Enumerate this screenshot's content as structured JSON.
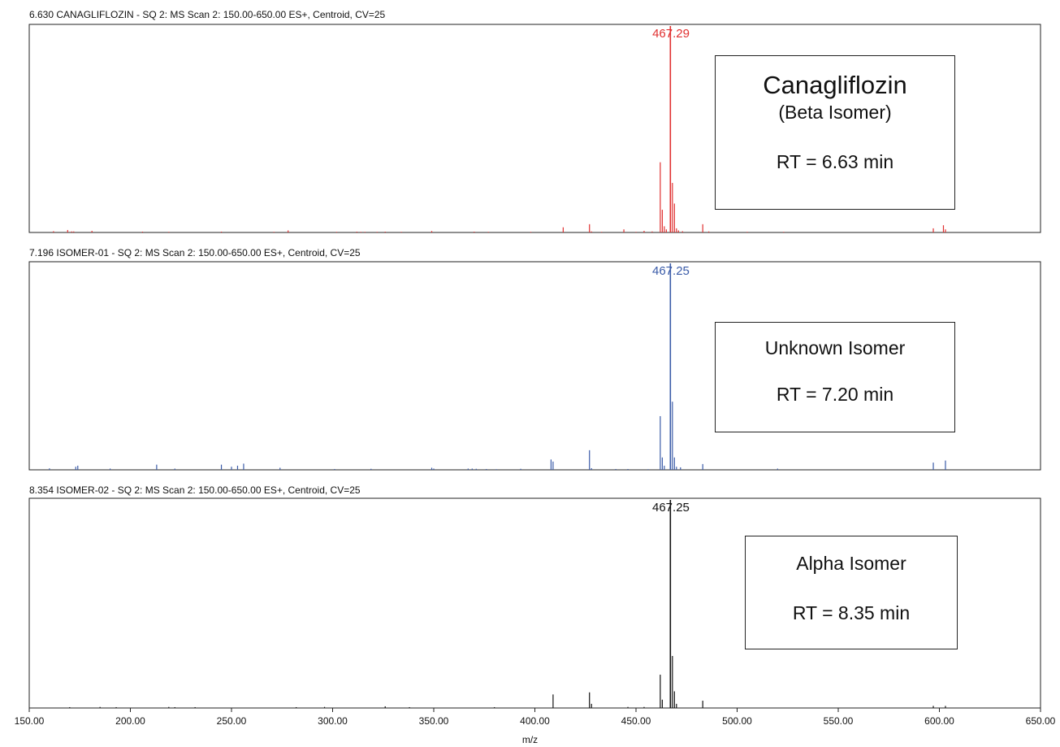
{
  "chart_data": [
    {
      "type": "bar",
      "title": "6.630 CANAGLIFLOZIN - SQ 2: MS Scan 2: 150.00-650.00 ES+, Centroid, CV=25",
      "color": "#e03030",
      "xlim": [
        150,
        650
      ],
      "ylim": [
        0,
        100
      ],
      "peak_label": "467.29",
      "peak_label_x": 467.29,
      "annotation": [
        "Canagliflozin",
        "(Beta Isomer)",
        "",
        "RT = 6.63 min"
      ],
      "x": [
        162,
        169,
        171,
        172,
        181,
        206,
        219,
        245,
        271,
        278,
        302,
        312,
        314,
        316,
        322,
        326,
        334,
        349,
        370,
        377,
        398,
        414,
        427,
        428,
        433,
        444,
        450,
        454,
        458,
        462,
        463,
        464,
        465,
        467,
        468,
        469,
        470,
        471,
        473,
        483,
        486,
        505,
        523,
        597,
        602,
        603
      ],
      "y": [
        0.6,
        1.2,
        0.5,
        0.5,
        0.8,
        0.4,
        0.3,
        0.4,
        0.3,
        1.0,
        0.3,
        0.4,
        0.3,
        0.3,
        0.3,
        0.4,
        0.3,
        0.7,
        0.4,
        0.3,
        0.3,
        2.5,
        4.0,
        0.5,
        0.3,
        1.5,
        0.3,
        0.8,
        0.5,
        34.0,
        11.0,
        3.0,
        1.5,
        100.0,
        24.0,
        14.0,
        2.0,
        1.0,
        0.6,
        4.0,
        0.5,
        0.3,
        0.3,
        2.0,
        3.5,
        1.5
      ]
    },
    {
      "type": "bar",
      "title": "7.196 ISOMER-01 - SQ 2: MS Scan 2: 150.00-650.00 ES+, Centroid, CV=25",
      "color": "#3a5ba8",
      "xlim": [
        150,
        650
      ],
      "ylim": [
        0,
        100
      ],
      "peak_label": "467.25",
      "peak_label_x": 467.25,
      "annotation": [
        "Unknown Isomer",
        "",
        "RT = 7.20 min"
      ],
      "x": [
        160,
        173,
        174,
        190,
        213,
        222,
        245,
        250,
        253,
        256,
        274,
        301,
        319,
        349,
        350,
        367,
        369,
        371,
        376,
        381,
        393,
        408,
        409,
        427,
        428,
        440,
        446,
        456,
        462,
        463,
        464,
        467,
        468,
        469,
        470,
        472,
        483,
        520,
        597,
        603
      ],
      "y": [
        0.7,
        1.5,
        2.0,
        0.6,
        2.5,
        0.6,
        2.5,
        1.5,
        2.0,
        3.0,
        1.0,
        0.4,
        0.5,
        1.0,
        0.6,
        0.6,
        0.6,
        0.5,
        0.4,
        0.3,
        0.5,
        5.0,
        4.0,
        9.5,
        0.8,
        0.4,
        0.4,
        0.3,
        26.0,
        6.0,
        2.0,
        100.0,
        33.0,
        6.0,
        1.5,
        1.2,
        2.8,
        0.6,
        3.5,
        4.5
      ]
    },
    {
      "type": "bar",
      "title": "8.354 ISOMER-02 - SQ 2: MS Scan 2: 150.00-650.00 ES+, Centroid, CV=25",
      "color": "#111111",
      "xlim": [
        150,
        650
      ],
      "ylim": [
        0,
        100
      ],
      "peak_label": "467.25",
      "peak_label_x": 467.25,
      "annotation": [
        "Alpha Isomer",
        "",
        "RT = 8.35 min"
      ],
      "x": [
        170,
        185,
        193,
        219,
        222,
        232,
        282,
        296,
        326,
        338,
        380,
        409,
        427,
        428,
        446,
        454,
        462,
        463,
        467,
        468,
        469,
        470,
        483,
        597,
        603
      ],
      "y": [
        0.4,
        0.5,
        0.4,
        0.5,
        0.4,
        0.4,
        0.4,
        0.5,
        0.8,
        0.4,
        0.4,
        6.5,
        7.5,
        2.0,
        0.5,
        0.5,
        16.0,
        4.0,
        100.0,
        25.0,
        8.0,
        2.0,
        3.5,
        1.0,
        1.0
      ]
    }
  ],
  "x_axis": {
    "label": "m/z",
    "ticks": [
      "150.00",
      "200.00",
      "250.00",
      "300.00",
      "350.00",
      "400.00",
      "450.00",
      "500.00",
      "550.00",
      "600.00",
      "650.00"
    ]
  }
}
